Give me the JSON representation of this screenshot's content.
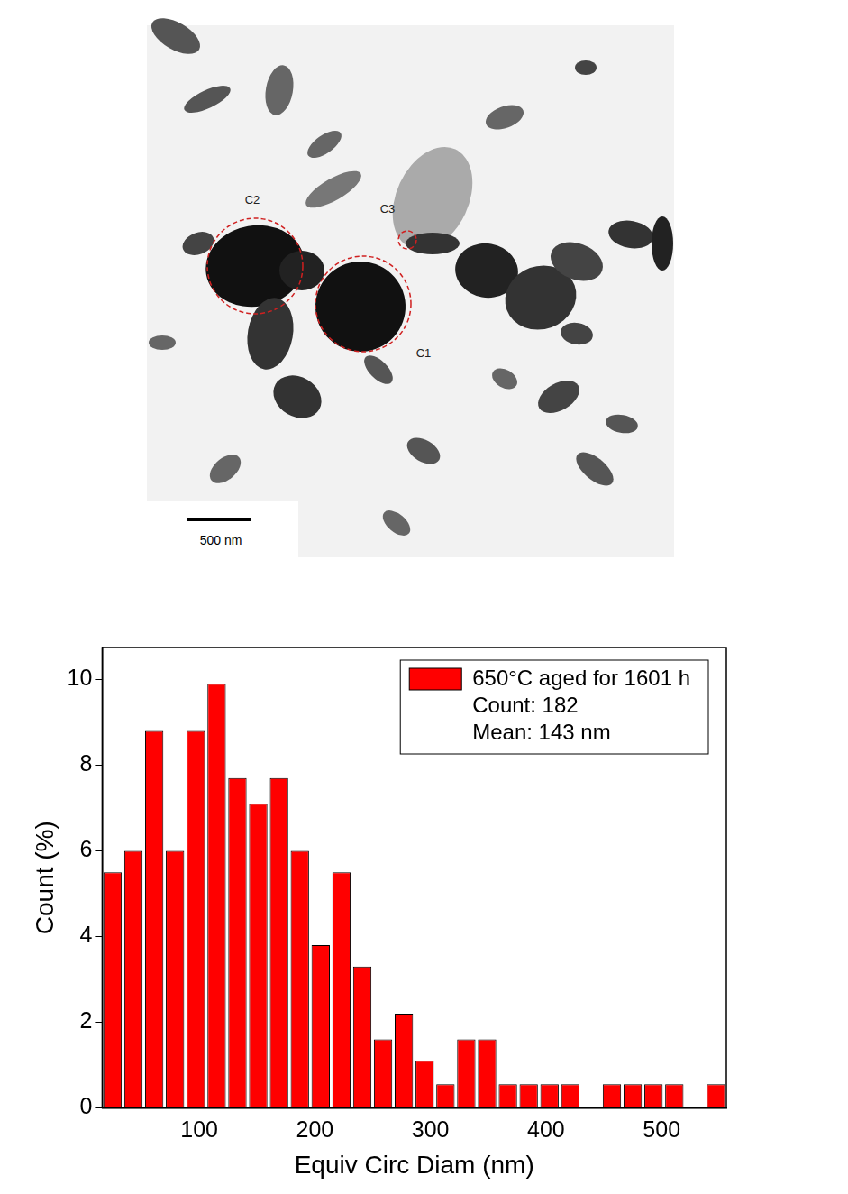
{
  "image": {
    "annotations": [
      "C1",
      "C2",
      "C3"
    ],
    "scale_bar": "500 nm"
  },
  "chart_data": {
    "type": "histogram",
    "x_label": "Equiv Circ Diam (nm)",
    "y_label": "Count (%)",
    "bins": [
      16,
      34,
      52,
      70,
      88,
      106,
      124,
      142,
      160,
      178,
      196,
      214,
      232,
      250,
      268,
      286,
      304,
      322,
      340,
      358,
      376,
      394,
      412,
      430,
      448,
      466,
      484,
      502,
      520,
      538,
      556
    ],
    "series": [
      {
        "name": "650°C aged for 1601 h",
        "color": "#ff0000",
        "values": [
          5.5,
          6.0,
          8.8,
          6.0,
          8.8,
          9.9,
          7.7,
          7.1,
          7.7,
          6.0,
          3.8,
          5.5,
          3.3,
          1.6,
          2.2,
          1.1,
          0.55,
          1.6,
          1.6,
          0.55,
          0.55,
          0.55,
          0.55,
          0,
          0.55,
          0.55,
          0.55,
          0.55,
          0,
          0.55
        ]
      }
    ],
    "annotations": [
      "Count: 182",
      "Mean: 143 nm"
    ],
    "xlim": [
      16,
      556
    ],
    "ylim": [
      0,
      10.75
    ],
    "xticks": [
      100,
      200,
      300,
      400,
      500
    ],
    "yticks": [
      0,
      2,
      4,
      6,
      8,
      10
    ],
    "legend": "upper right",
    "grid": false
  }
}
